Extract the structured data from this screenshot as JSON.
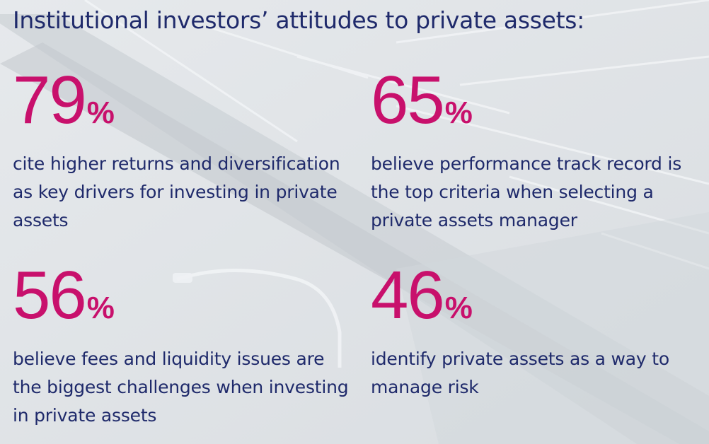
{
  "title": "Institutional investors’ attitudes to private assets:",
  "colors": {
    "accent": "#c8106c",
    "text": "#1f2a6b",
    "background": "#dfe3e7"
  },
  "stats": [
    {
      "value": "79",
      "unit": "%",
      "description": "cite higher returns and diversification as key drivers for investing in private assets"
    },
    {
      "value": "65",
      "unit": "%",
      "description": "believe performance track record is the top criteria when selecting a private assets manager"
    },
    {
      "value": "56",
      "unit": "%",
      "description": "believe fees and liquidity issues are the biggest challenges when investing in private assets"
    },
    {
      "value": "46",
      "unit": "%",
      "description": "identify private assets as a way to manage risk"
    }
  ]
}
